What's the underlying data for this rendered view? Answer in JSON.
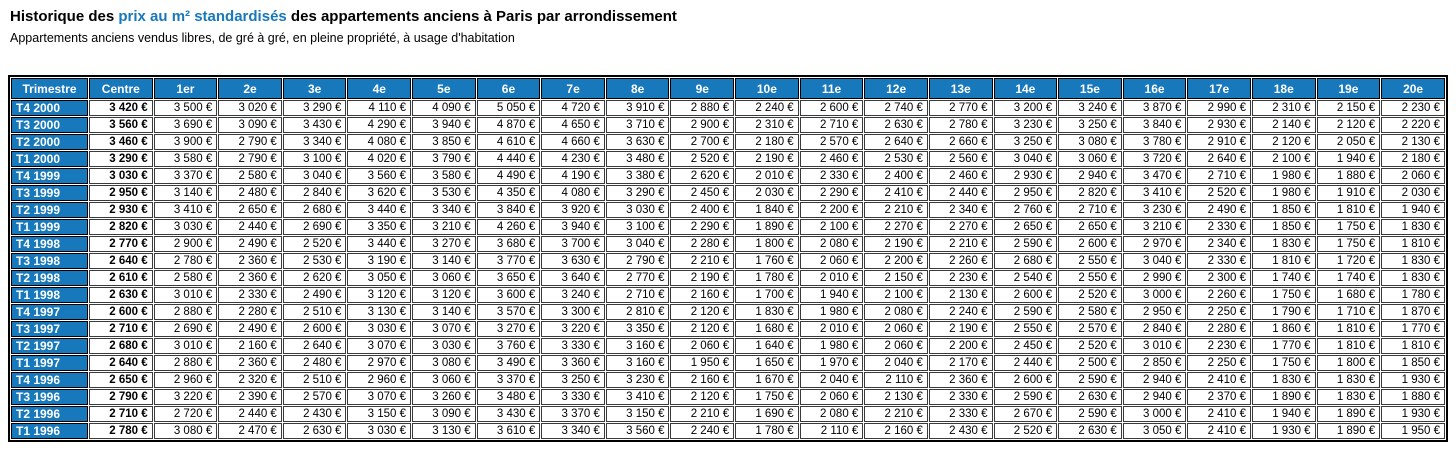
{
  "page": {
    "title_prefix": "Historique des ",
    "title_link": "prix au m² standardisés",
    "title_suffix": " des appartements anciens à Paris par arrondissement",
    "subtitle": "Appartements anciens vendus libres, de gré à gré, en pleine propriété, à usage d'habitation"
  },
  "colors": {
    "header_blue": "#1878BC",
    "title_link_blue": "#1878BC",
    "cell_border": "#3a3a3a",
    "outer_border": "#000000",
    "cell_background": "#ffffff",
    "header_text": "#ffffff",
    "body_text": "#000000"
  },
  "chart_data": {
    "type": "table",
    "title": "Historique des prix au m² standardisés des appartements anciens à Paris par arrondissement",
    "subtitle": "Appartements anciens vendus libres, de gré à gré, en pleine propriété, à usage d'habitation",
    "currency_suffix": "€",
    "columns": [
      "Trimestre",
      "Centre",
      "1er",
      "2e",
      "3e",
      "4e",
      "5e",
      "6e",
      "7e",
      "8e",
      "9e",
      "10e",
      "11e",
      "12e",
      "13e",
      "14e",
      "15e",
      "16e",
      "17e",
      "18e",
      "19e",
      "20e"
    ],
    "rows": [
      {
        "label": "T4 2000",
        "values": [
          3420,
          3500,
          3020,
          3290,
          4110,
          4090,
          5050,
          4720,
          3910,
          2880,
          2240,
          2600,
          2740,
          2770,
          3200,
          3240,
          3870,
          2990,
          2310,
          2150,
          2230
        ]
      },
      {
        "label": "T3 2000",
        "values": [
          3560,
          3690,
          3090,
          3430,
          4290,
          3940,
          4870,
          4650,
          3710,
          2900,
          2310,
          2710,
          2630,
          2780,
          3230,
          3250,
          3840,
          2930,
          2140,
          2120,
          2220
        ]
      },
      {
        "label": "T2 2000",
        "values": [
          3460,
          3900,
          2790,
          3340,
          4080,
          3850,
          4610,
          4660,
          3630,
          2700,
          2180,
          2570,
          2640,
          2660,
          3250,
          3080,
          3780,
          2910,
          2120,
          2050,
          2130
        ]
      },
      {
        "label": "T1 2000",
        "values": [
          3290,
          3580,
          2790,
          3100,
          4020,
          3790,
          4440,
          4230,
          3480,
          2520,
          2190,
          2460,
          2530,
          2560,
          3040,
          3060,
          3720,
          2640,
          2100,
          1940,
          2180
        ]
      },
      {
        "label": "T4 1999",
        "values": [
          3030,
          3370,
          2580,
          3040,
          3560,
          3580,
          4490,
          4190,
          3380,
          2620,
          2010,
          2330,
          2400,
          2460,
          2930,
          2940,
          3470,
          2710,
          1980,
          1880,
          2060
        ]
      },
      {
        "label": "T3 1999",
        "values": [
          2950,
          3140,
          2480,
          2840,
          3620,
          3530,
          4350,
          4080,
          3290,
          2450,
          2030,
          2290,
          2410,
          2440,
          2950,
          2820,
          3410,
          2520,
          1980,
          1910,
          2030
        ]
      },
      {
        "label": "T2 1999",
        "values": [
          2930,
          3410,
          2650,
          2680,
          3440,
          3340,
          3840,
          3920,
          3030,
          2400,
          1840,
          2200,
          2210,
          2340,
          2760,
          2710,
          3230,
          2490,
          1850,
          1810,
          1940
        ]
      },
      {
        "label": "T1 1999",
        "values": [
          2820,
          3030,
          2440,
          2690,
          3350,
          3210,
          4260,
          3940,
          3100,
          2290,
          1890,
          2100,
          2270,
          2270,
          2650,
          2650,
          3210,
          2330,
          1850,
          1750,
          1830
        ]
      },
      {
        "label": "T4 1998",
        "values": [
          2770,
          2900,
          2490,
          2520,
          3440,
          3270,
          3680,
          3700,
          3040,
          2280,
          1800,
          2080,
          2190,
          2210,
          2590,
          2600,
          2970,
          2340,
          1830,
          1750,
          1810
        ]
      },
      {
        "label": "T3 1998",
        "values": [
          2640,
          2780,
          2360,
          2530,
          3190,
          3140,
          3770,
          3630,
          2790,
          2210,
          1760,
          2060,
          2200,
          2260,
          2680,
          2550,
          3040,
          2330,
          1810,
          1720,
          1830
        ]
      },
      {
        "label": "T2 1998",
        "values": [
          2610,
          2580,
          2360,
          2620,
          3050,
          3060,
          3650,
          3640,
          2770,
          2190,
          1780,
          2010,
          2150,
          2230,
          2540,
          2550,
          2990,
          2300,
          1740,
          1740,
          1830
        ]
      },
      {
        "label": "T1 1998",
        "values": [
          2630,
          3010,
          2330,
          2490,
          3120,
          3120,
          3600,
          3240,
          2710,
          2160,
          1700,
          1940,
          2100,
          2130,
          2600,
          2520,
          3000,
          2260,
          1750,
          1680,
          1780
        ]
      },
      {
        "label": "T4 1997",
        "values": [
          2600,
          2880,
          2280,
          2510,
          3130,
          3140,
          3570,
          3300,
          2810,
          2120,
          1830,
          1980,
          2080,
          2240,
          2590,
          2580,
          2950,
          2250,
          1790,
          1710,
          1870
        ]
      },
      {
        "label": "T3 1997",
        "values": [
          2710,
          2690,
          2490,
          2600,
          3030,
          3070,
          3270,
          3220,
          3350,
          2120,
          1680,
          2010,
          2060,
          2190,
          2550,
          2570,
          2840,
          2280,
          1860,
          1810,
          1770
        ]
      },
      {
        "label": "T2 1997",
        "values": [
          2680,
          3010,
          2160,
          2640,
          3070,
          3030,
          3760,
          3330,
          3160,
          2060,
          1640,
          1980,
          2060,
          2200,
          2450,
          2520,
          3010,
          2230,
          1770,
          1810,
          1810
        ]
      },
      {
        "label": "T1 1997",
        "values": [
          2640,
          2880,
          2360,
          2480,
          2970,
          3080,
          3490,
          3360,
          3160,
          1950,
          1650,
          1970,
          2040,
          2170,
          2440,
          2500,
          2850,
          2250,
          1750,
          1800,
          1850
        ]
      },
      {
        "label": "T4 1996",
        "values": [
          2650,
          2960,
          2320,
          2510,
          2960,
          3060,
          3370,
          3250,
          3230,
          2160,
          1670,
          2040,
          2110,
          2360,
          2600,
          2590,
          2940,
          2410,
          1830,
          1830,
          1930
        ]
      },
      {
        "label": "T3 1996",
        "values": [
          2790,
          3220,
          2390,
          2570,
          3070,
          3260,
          3480,
          3330,
          3410,
          2120,
          1750,
          2060,
          2130,
          2330,
          2590,
          2630,
          2940,
          2370,
          1890,
          1830,
          1880
        ]
      },
      {
        "label": "T2 1996",
        "values": [
          2710,
          2720,
          2440,
          2430,
          3150,
          3090,
          3430,
          3370,
          3150,
          2210,
          1690,
          2080,
          2210,
          2330,
          2670,
          2590,
          3000,
          2410,
          1940,
          1890,
          1930
        ]
      },
      {
        "label": "T1 1996",
        "values": [
          2780,
          3080,
          2470,
          2630,
          3030,
          3130,
          3610,
          3340,
          3560,
          2240,
          1780,
          2110,
          2160,
          2430,
          2520,
          2630,
          3050,
          2410,
          1930,
          1890,
          1950
        ]
      }
    ]
  }
}
